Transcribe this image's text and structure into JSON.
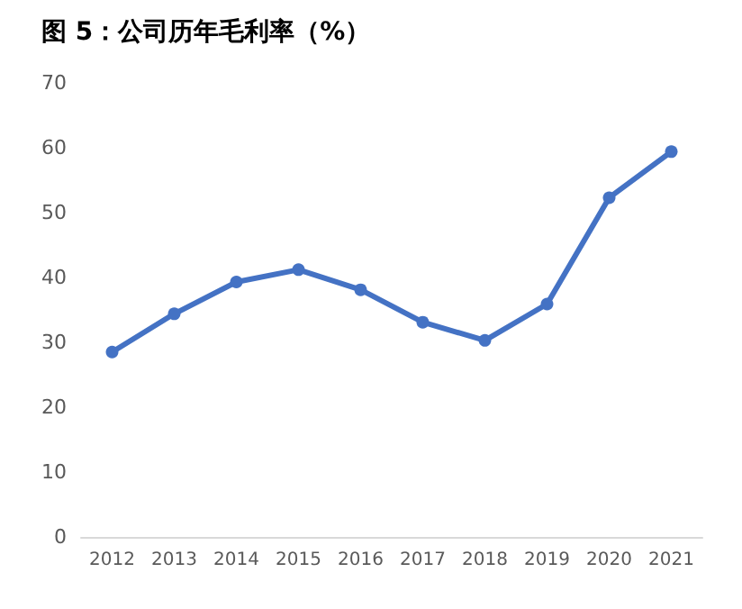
{
  "chart_data": {
    "type": "line",
    "title": "图 5：公司历年毛利率（%）",
    "categories": [
      "2012",
      "2013",
      "2014",
      "2015",
      "2016",
      "2017",
      "2018",
      "2019",
      "2020",
      "2021"
    ],
    "series": [
      {
        "color": "#4472c4",
        "values": [
          28.5,
          34.4,
          39.3,
          41.2,
          38.1,
          33.1,
          30.3,
          35.9,
          52.3,
          59.4
        ]
      }
    ],
    "ylim": [
      0,
      70
    ],
    "yticks": [
      0,
      10,
      20,
      30,
      40,
      50,
      60,
      70
    ],
    "grid": false,
    "marker": "circle",
    "line_style": "solid"
  }
}
